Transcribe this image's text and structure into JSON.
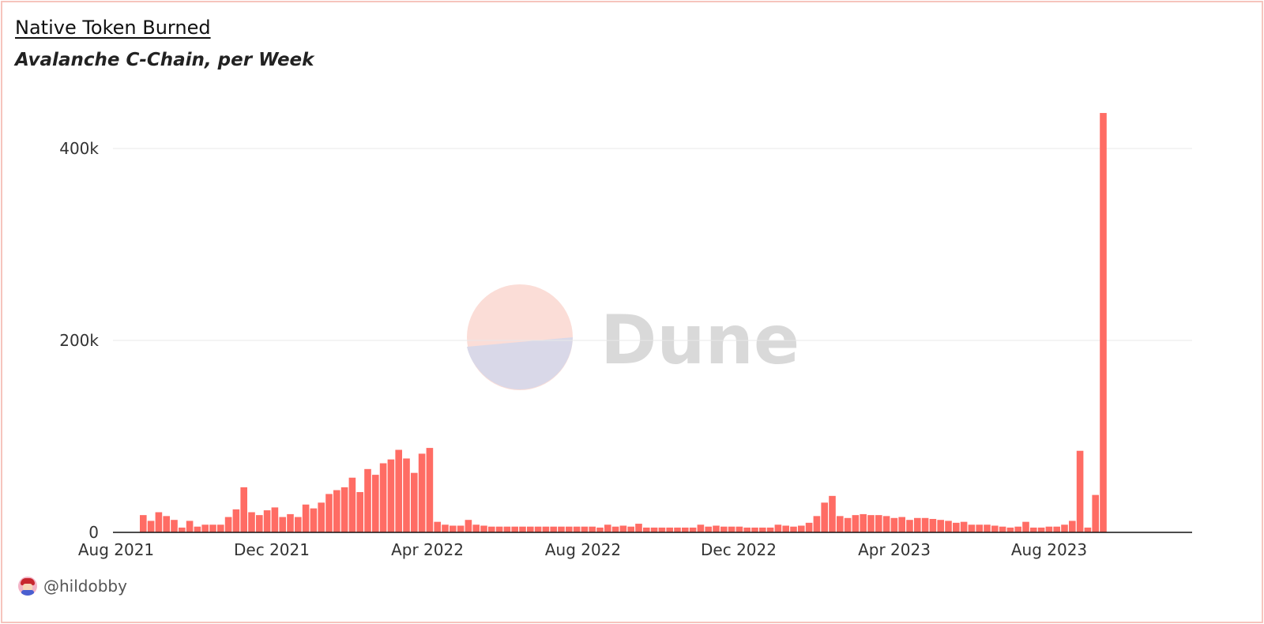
{
  "header": {
    "title": "Native Token Burned",
    "subtitle": "Avalanche C-Chain, per Week"
  },
  "footer": {
    "author": "@hildobby"
  },
  "watermark": {
    "text": "Dune"
  },
  "colors": {
    "bar": "#ff6c64",
    "grid": "#e8e8e8",
    "axis": "#111111",
    "watermark_top": "#fbddd7",
    "watermark_bottom": "#d9d8e8",
    "watermark_text": "#d9d9d9"
  },
  "chart_data": {
    "type": "bar",
    "title": "Native Token Burned",
    "subtitle": "Avalanche C-Chain, per Week",
    "xlabel": "",
    "ylabel": "",
    "ylim": [
      0,
      440000
    ],
    "grid": true,
    "legend": "none",
    "x_start_label": "Aug 2021",
    "x_ticks": [
      "Aug 2021",
      "Dec 2021",
      "Apr 2022",
      "Aug 2022",
      "Dec 2022",
      "Apr 2023",
      "Aug 2023"
    ],
    "y_ticks": [
      {
        "value": 0,
        "label": "0"
      },
      {
        "value": 200000,
        "label": "200k"
      },
      {
        "value": 400000,
        "label": "400k"
      }
    ],
    "series": [
      {
        "values": [
          18000,
          12000,
          21000,
          17000,
          13000,
          5000,
          12000,
          6000,
          8000,
          8000,
          8000,
          16000,
          24000,
          47000,
          21000,
          18000,
          23000,
          26000,
          16000,
          19000,
          16000,
          29000,
          25000,
          31000,
          40000,
          44000,
          47000,
          57000,
          42000,
          66000,
          60000,
          72000,
          76000,
          86000,
          77000,
          62000,
          82000,
          88000,
          11000,
          8000,
          7000,
          7000,
          13000,
          8000,
          7000,
          6000,
          6000,
          6000,
          6000,
          6000,
          6000,
          6000,
          6000,
          6000,
          6000,
          6000,
          6000,
          6000,
          6000,
          5000,
          8000,
          6000,
          7000,
          6000,
          9000,
          5000,
          5000,
          5000,
          5000,
          5000,
          5000,
          5000,
          8000,
          6000,
          7000,
          6000,
          6000,
          6000,
          5000,
          5000,
          5000,
          5000,
          8000,
          7000,
          6000,
          7000,
          10000,
          17000,
          31000,
          38000,
          17000,
          15000,
          18000,
          19000,
          18000,
          18000,
          17000,
          15000,
          16000,
          13000,
          15000,
          15000,
          14000,
          13000,
          12000,
          10000,
          11000,
          8000,
          8000,
          8000,
          7000,
          6000,
          5000,
          6000,
          11000,
          5000,
          5000,
          6000,
          6000,
          8000,
          12000,
          85000,
          5000,
          39000,
          437000
        ]
      }
    ]
  }
}
